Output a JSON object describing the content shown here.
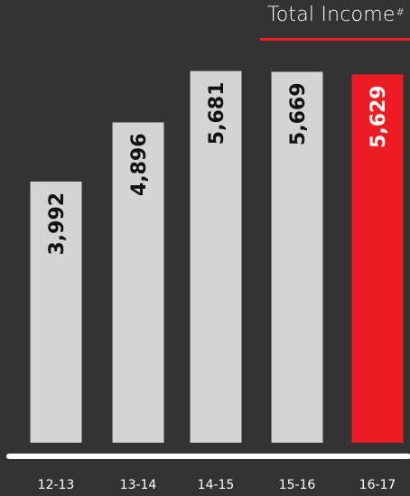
{
  "chart_data": {
    "type": "bar",
    "title": "Total Income",
    "title_mark": "#",
    "categories": [
      "12-13",
      "13-14",
      "14-15",
      "15-16",
      "16-17"
    ],
    "values": [
      3992,
      4896,
      5681,
      5669,
      5629
    ],
    "value_labels": [
      "3,992",
      "4,896",
      "5,681",
      "5,669",
      "5,629"
    ],
    "highlight_index": 4,
    "ylim": [
      0,
      5800
    ],
    "grid": false,
    "legend": "none"
  },
  "colors": {
    "background": "#333333",
    "bar": "#d4d4d4",
    "highlight": "#ed1c24",
    "label_dark": "#111111",
    "label_light": "#ffffff",
    "axis": "#ffffff",
    "tick_text": "#ffffff"
  }
}
